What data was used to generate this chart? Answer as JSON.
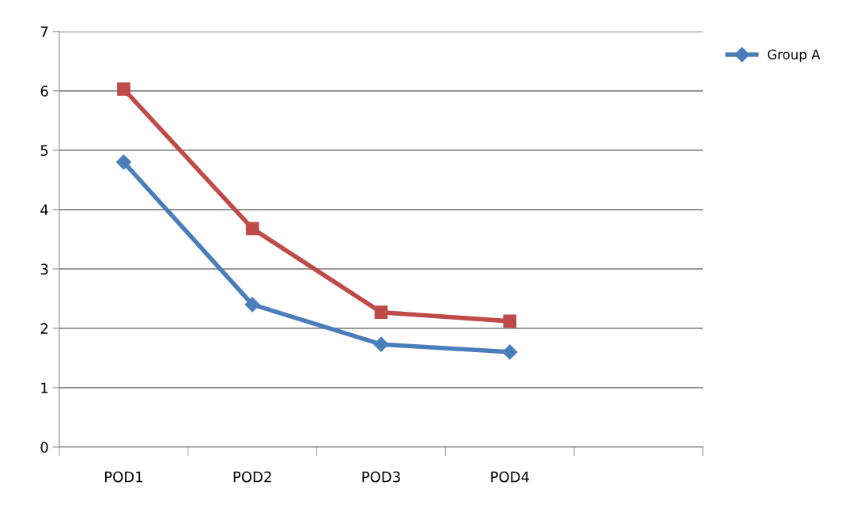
{
  "chart_data": {
    "type": "line",
    "categories": [
      "POD1",
      "POD2",
      "POD3",
      "POD4",
      null
    ],
    "series": [
      {
        "name": "Group A",
        "color": "#4a7ebb",
        "marker": "diamond",
        "values": [
          4.8,
          2.4,
          1.73,
          1.6,
          null
        ]
      },
      {
        "color": "#be4b48",
        "marker": "square",
        "values": [
          6.03,
          3.68,
          2.27,
          2.12,
          null
        ]
      }
    ],
    "ylim": [
      0,
      7
    ],
    "yticks": [
      0,
      1,
      2,
      3,
      4,
      5,
      6,
      7
    ],
    "grid": "y",
    "legend": "top right",
    "line_style": "solid"
  }
}
